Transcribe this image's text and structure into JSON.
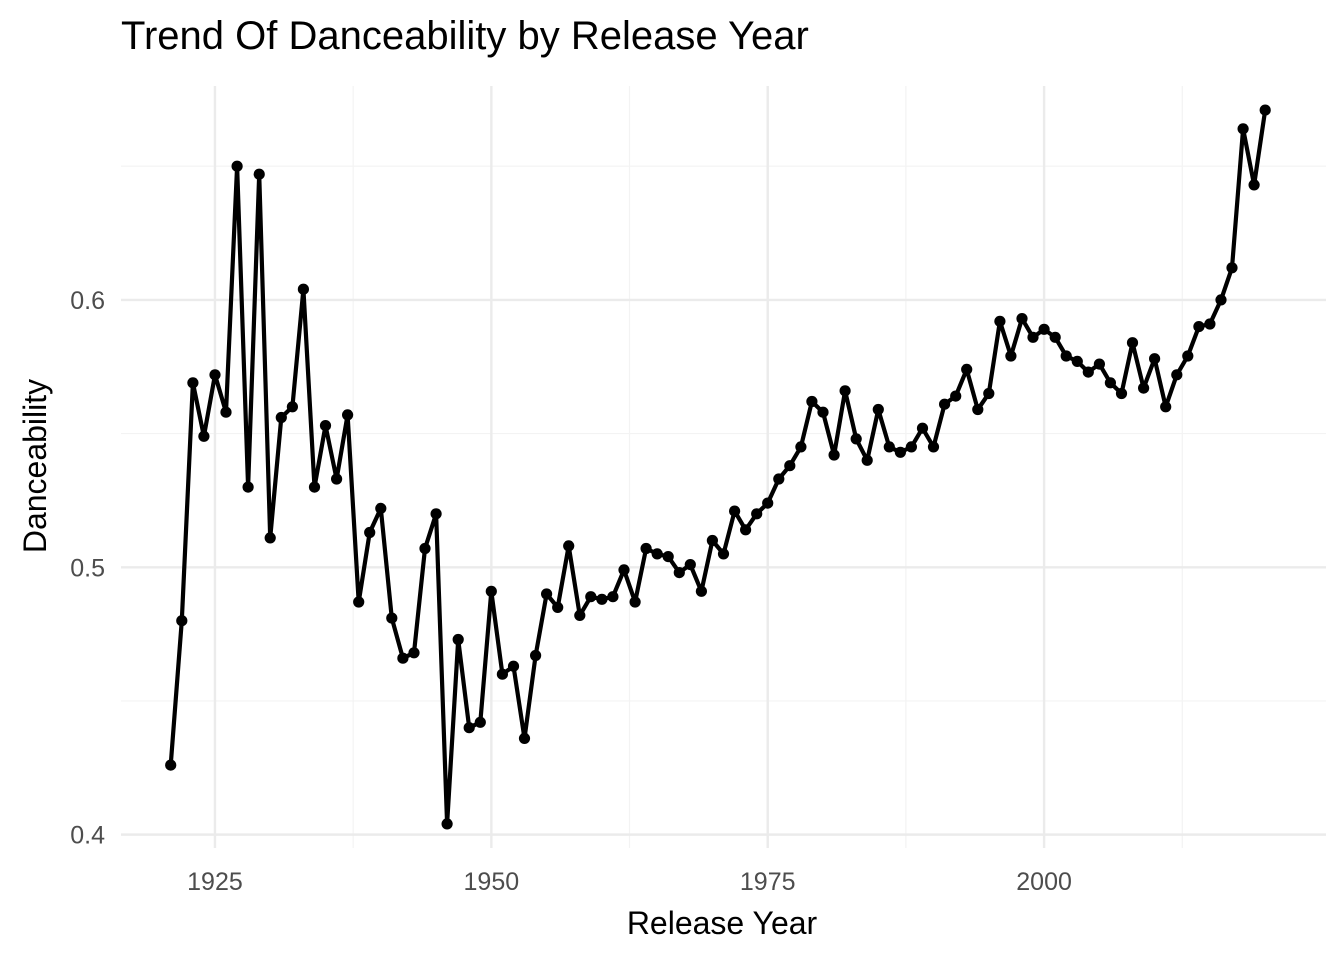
{
  "chart_data": {
    "type": "line",
    "title": "Trend Of Danceability by Release Year",
    "xlabel": "Release Year",
    "ylabel": "Danceability",
    "xlim": [
      1916.5,
      2025.5
    ],
    "ylim": [
      0.395,
      0.68
    ],
    "x_ticks": [
      1925,
      1950,
      1975,
      2000
    ],
    "y_ticks": [
      0.4,
      0.5,
      0.6
    ],
    "y_tick_labels": [
      "0.4",
      "0.5",
      "0.6"
    ],
    "grid": true,
    "legend": "none",
    "line_color": "#000000",
    "series": [
      {
        "x": [
          1921,
          1922,
          1923,
          1924,
          1925,
          1926,
          1927,
          1928,
          1929,
          1930,
          1931,
          1932,
          1933,
          1934,
          1935,
          1936,
          1937,
          1938,
          1939,
          1940,
          1941,
          1942,
          1943,
          1944,
          1945,
          1946,
          1947,
          1948,
          1949,
          1950,
          1951,
          1952,
          1953,
          1954,
          1955,
          1956,
          1957,
          1958,
          1959,
          1960,
          1961,
          1962,
          1963,
          1964,
          1965,
          1966,
          1967,
          1968,
          1969,
          1970,
          1971,
          1972,
          1973,
          1974,
          1975,
          1976,
          1977,
          1978,
          1979,
          1980,
          1981,
          1982,
          1983,
          1984,
          1985,
          1986,
          1987,
          1988,
          1989,
          1990,
          1991,
          1992,
          1993,
          1994,
          1995,
          1996,
          1997,
          1998,
          1999,
          2000,
          2001,
          2002,
          2003,
          2004,
          2005,
          2006,
          2007,
          2008,
          2009,
          2010,
          2011,
          2012,
          2013,
          2014,
          2015,
          2016,
          2017,
          2018,
          2019,
          2020
        ],
        "y": [
          0.426,
          0.48,
          0.569,
          0.549,
          0.572,
          0.558,
          0.65,
          0.53,
          0.647,
          0.511,
          0.556,
          0.56,
          0.604,
          0.53,
          0.553,
          0.533,
          0.557,
          0.487,
          0.513,
          0.522,
          0.481,
          0.466,
          0.468,
          0.507,
          0.52,
          0.404,
          0.473,
          0.44,
          0.442,
          0.491,
          0.46,
          0.463,
          0.436,
          0.467,
          0.49,
          0.485,
          0.508,
          0.482,
          0.489,
          0.488,
          0.489,
          0.499,
          0.487,
          0.507,
          0.505,
          0.504,
          0.498,
          0.501,
          0.491,
          0.51,
          0.505,
          0.521,
          0.514,
          0.52,
          0.524,
          0.533,
          0.538,
          0.545,
          0.562,
          0.558,
          0.542,
          0.566,
          0.548,
          0.54,
          0.559,
          0.545,
          0.543,
          0.545,
          0.552,
          0.545,
          0.561,
          0.564,
          0.574,
          0.559,
          0.565,
          0.592,
          0.579,
          0.593,
          0.586,
          0.589,
          0.586,
          0.579,
          0.577,
          0.573,
          0.576,
          0.569,
          0.565,
          0.584,
          0.567,
          0.578,
          0.56,
          0.572,
          0.579,
          0.59,
          0.591,
          0.6,
          0.612,
          0.664,
          0.643,
          0.671
        ]
      }
    ]
  }
}
